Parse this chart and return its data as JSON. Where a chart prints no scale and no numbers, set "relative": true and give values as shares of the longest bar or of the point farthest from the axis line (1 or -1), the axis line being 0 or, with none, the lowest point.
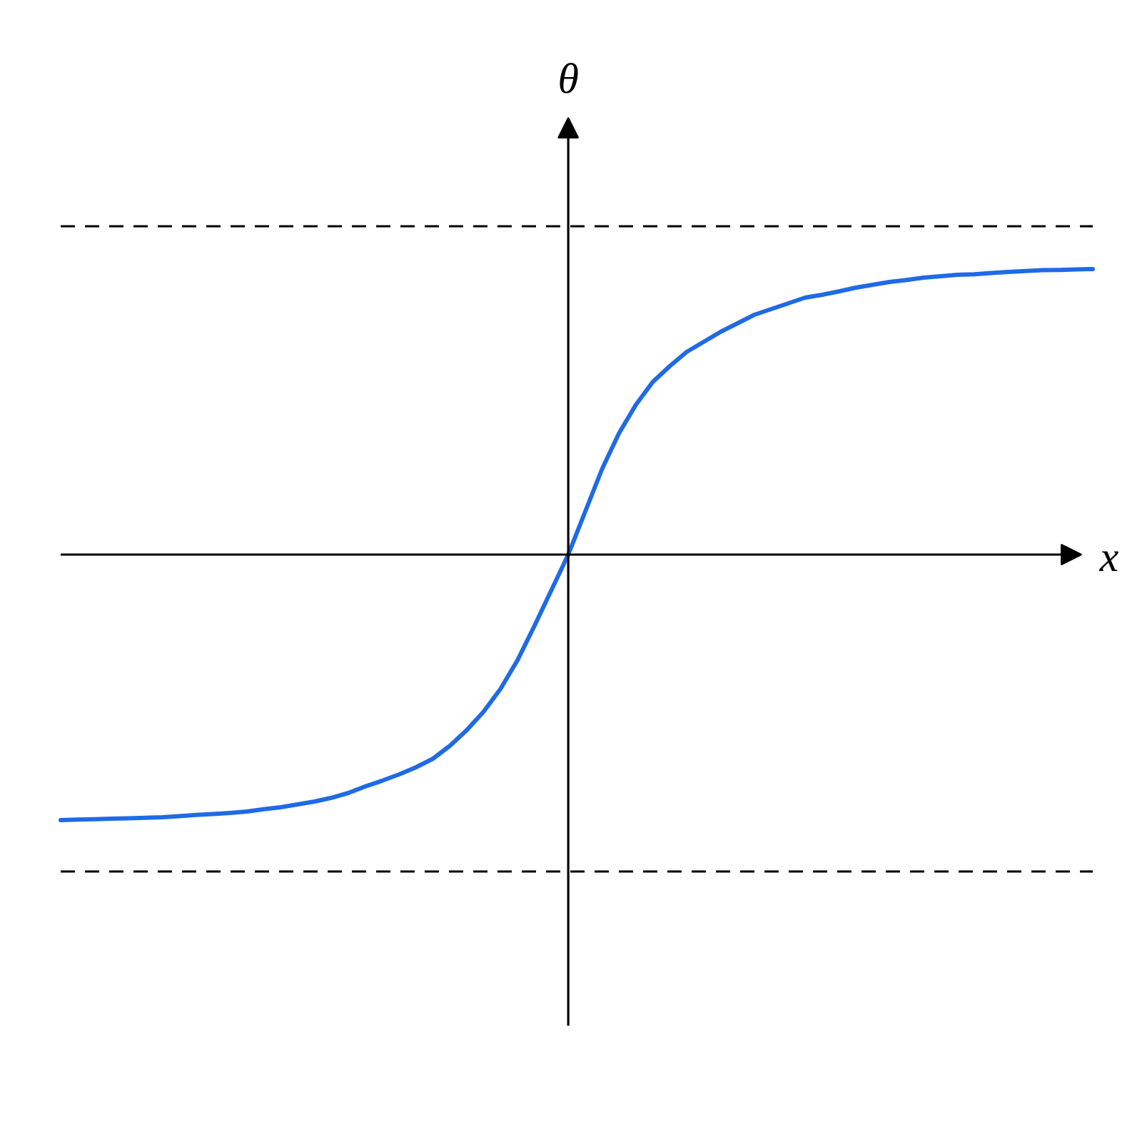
{
  "chart_data": {
    "type": "line",
    "relative": true,
    "xlabel": "x",
    "ylabel": "θ",
    "grid": false,
    "categories": [
      null,
      null,
      null,
      null,
      null,
      null,
      null,
      null,
      null,
      null,
      null,
      null,
      null,
      null,
      null,
      null,
      null,
      null,
      null,
      null,
      null,
      null,
      null,
      null,
      null,
      null,
      null,
      null,
      null,
      null,
      null,
      null,
      null,
      null,
      null,
      null,
      null,
      null,
      null,
      null,
      null,
      null,
      null,
      null,
      null,
      null,
      null,
      null,
      null,
      null,
      null,
      null,
      null,
      null,
      null,
      null,
      null,
      null,
      null,
      null,
      null,
      null
    ],
    "series": [
      {
        "color": "#1f6ae6",
        "values": [
          -0.93,
          -0.928,
          -0.927,
          -0.925,
          -0.924,
          -0.922,
          -0.92,
          -0.916,
          -0.912,
          -0.909,
          -0.905,
          -0.9,
          -0.892,
          -0.885,
          -0.875,
          -0.865,
          -0.852,
          -0.835,
          -0.812,
          -0.792,
          -0.77,
          -0.745,
          -0.715,
          -0.67,
          -0.615,
          -0.55,
          -0.47,
          -0.37,
          -0.25,
          -0.125,
          0,
          0.15,
          0.3,
          0.425,
          0.525,
          0.605,
          0.66,
          0.71,
          0.745,
          0.78,
          0.81,
          0.84,
          0.86,
          0.88,
          0.9,
          0.91,
          0.922,
          0.935,
          0.945,
          0.955,
          0.962,
          0.97,
          0.975,
          0.98,
          0.982,
          0.986,
          0.99,
          0.993,
          0.996,
          0.997,
          0.999,
          1.0
        ]
      }
    ],
    "ref_lines": [
      {
        "axis": "y",
        "value": 1.15,
        "line_style": "dashed",
        "color": "#000000"
      },
      {
        "axis": "y",
        "value": -1.11,
        "line_style": "dashed",
        "color": "#000000"
      }
    ]
  }
}
